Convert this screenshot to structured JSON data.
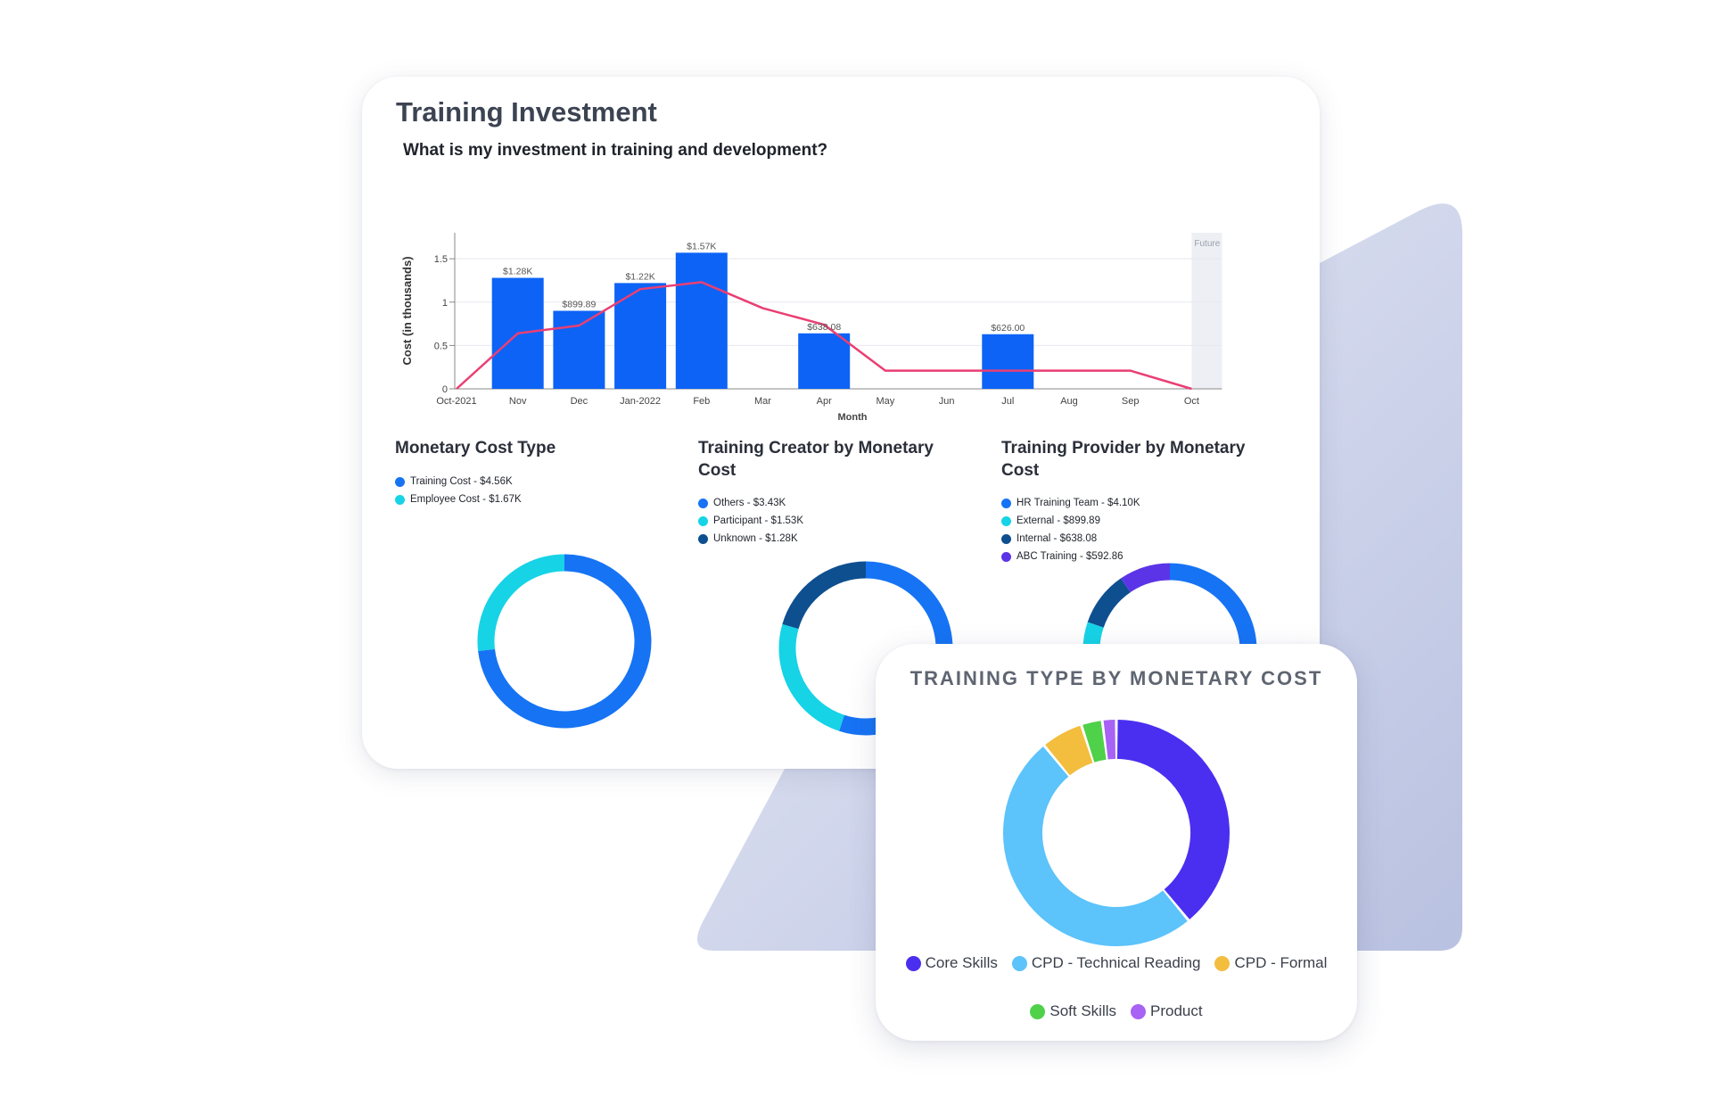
{
  "colors": {
    "bar": "#0d63f6",
    "line": "#ea3f73",
    "grid": "#e6e8ee",
    "future_band": "#eeeff4",
    "bg_shape": "#c4cbe5"
  },
  "main": {
    "title": "Training Investment",
    "question": "What is my investment in training and development?"
  },
  "panels": [
    {
      "title": "Monetary Cost Type",
      "legend": [
        {
          "label": "Training Cost - $4.56K",
          "color": "#1673f4"
        },
        {
          "label": "Employee Cost - $1.67K",
          "color": "#16d3e6"
        }
      ]
    },
    {
      "title": "Training Creator by Monetary Cost",
      "legend": [
        {
          "label": "Others - $3.43K",
          "color": "#1673f4"
        },
        {
          "label": "Participant - $1.53K",
          "color": "#16d3e6"
        },
        {
          "label": "Unknown - $1.28K",
          "color": "#0e4f90"
        }
      ]
    },
    {
      "title": "Training Provider by Monetary Cost",
      "legend": [
        {
          "label": "HR Training Team - $4.10K",
          "color": "#1673f4"
        },
        {
          "label": "External - $899.89",
          "color": "#16d3e6"
        },
        {
          "label": "Internal - $638.08",
          "color": "#0e4f90"
        },
        {
          "label": "ABC Training - $592.86",
          "color": "#5b34e8"
        }
      ]
    }
  ],
  "popup": {
    "title": "TRAINING TYPE BY MONETARY COST",
    "legend": [
      {
        "label": "Core Skills",
        "color": "#4a2ff0"
      },
      {
        "label": "CPD - Technical Reading",
        "color": "#5cc3fb"
      },
      {
        "label": "CPD - Formal",
        "color": "#f3bd3e"
      },
      {
        "label": "Soft Skills",
        "color": "#4fd149"
      },
      {
        "label": "Product",
        "color": "#a862f4"
      }
    ]
  },
  "chart_data": [
    {
      "type": "bar",
      "xlabel": "Month",
      "ylabel": "Cost (in thousands)",
      "categories": [
        "Oct-2021",
        "Nov",
        "Dec",
        "Jan-2022",
        "Feb",
        "Mar",
        "Apr",
        "May",
        "Jun",
        "Jul",
        "Aug",
        "Sep",
        "Oct"
      ],
      "ylim": [
        0,
        1.8
      ],
      "yticks": [
        0,
        0.5,
        1,
        1.5
      ],
      "ytick_labels": [
        "0",
        "0.5",
        "1",
        "1.5"
      ],
      "series": [
        {
          "kind": "bar",
          "values": [
            null,
            1.28,
            0.9,
            1.22,
            1.57,
            null,
            0.64,
            null,
            null,
            0.63,
            null,
            null,
            null
          ],
          "labels": [
            "",
            "$1.28K",
            "$899.89",
            "$1.22K",
            "$1.57K",
            "",
            "$638.08",
            "",
            "",
            "$626.00",
            "",
            "",
            ""
          ]
        },
        {
          "kind": "line",
          "values": [
            0,
            0.64,
            0.73,
            1.15,
            1.23,
            0.93,
            0.74,
            0.21,
            0.21,
            0.21,
            0.21,
            0.21,
            0
          ]
        }
      ],
      "annotations": [
        "Future"
      ],
      "grid": true
    },
    {
      "type": "pie",
      "title": "Monetary Cost Type",
      "labels": [
        "Training Cost",
        "Employee Cost"
      ],
      "values": [
        4560,
        1670
      ],
      "colors": [
        "#1673f4",
        "#16d3e6"
      ]
    },
    {
      "type": "pie",
      "title": "Training Creator by Monetary Cost",
      "labels": [
        "Others",
        "Participant",
        "Unknown"
      ],
      "values": [
        3430,
        1530,
        1280
      ],
      "colors": [
        "#1673f4",
        "#16d3e6",
        "#0e4f90"
      ]
    },
    {
      "type": "pie",
      "title": "Training Provider by Monetary Cost",
      "labels": [
        "HR Training Team",
        "External",
        "Internal",
        "ABC Training"
      ],
      "values": [
        4100,
        899.89,
        638.08,
        592.86
      ],
      "colors": [
        "#1673f4",
        "#16d3e6",
        "#0e4f90",
        "#5b34e8"
      ]
    },
    {
      "type": "pie",
      "title": "TRAINING TYPE BY MONETARY COST",
      "labels": [
        "Core Skills",
        "CPD - Technical Reading",
        "CPD - Formal",
        "Soft Skills",
        "Product"
      ],
      "values": [
        39,
        50,
        6,
        3,
        2
      ],
      "colors": [
        "#4a2ff0",
        "#5cc3fb",
        "#f3bd3e",
        "#4fd149",
        "#a862f4"
      ]
    }
  ]
}
